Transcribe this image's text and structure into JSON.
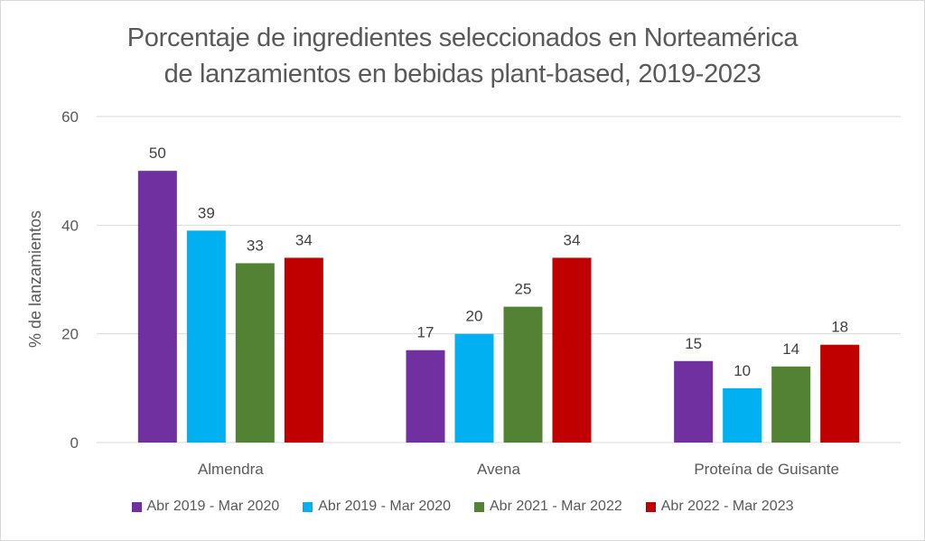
{
  "chart_data": {
    "type": "bar",
    "title": "Porcentaje de ingredientes seleccionados en Norteamérica de lanzamientos en bebidas plant-based, 2019-2023",
    "title_lines": [
      "Porcentaje de ingredientes seleccionados en Norteamérica",
      "de lanzamientos en bebidas plant-based, 2019-2023"
    ],
    "xlabel": "",
    "ylabel": "% de lanzamientos",
    "ylim": [
      0,
      60
    ],
    "yticks": [
      0,
      20,
      40,
      60
    ],
    "grid": true,
    "legend_position": "bottom",
    "categories": [
      "Almendra",
      "Avena",
      "Proteína de Guisante"
    ],
    "series": [
      {
        "name": "Abr 2019 - Mar 2020",
        "color": "#7030a0",
        "values": [
          50,
          17,
          15
        ]
      },
      {
        "name": "Abr 2019 - Mar 2020",
        "color": "#00b0f0",
        "values": [
          39,
          20,
          10
        ]
      },
      {
        "name": "Abr 2021 - Mar 2022",
        "color": "#548235",
        "values": [
          33,
          25,
          14
        ]
      },
      {
        "name": "Abr 2022 - Mar 2023",
        "color": "#c00000",
        "values": [
          34,
          34,
          18
        ]
      }
    ],
    "data_labels": true
  },
  "colors": {
    "text": "#595959",
    "gridline": "#d9d9d9",
    "label": "#404040"
  }
}
